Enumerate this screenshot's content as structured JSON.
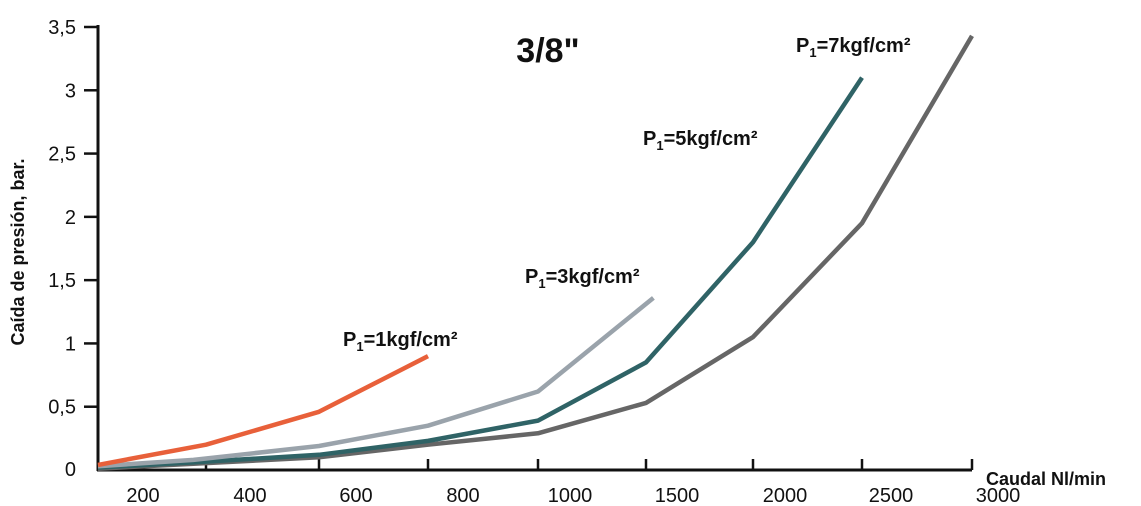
{
  "chart_data": {
    "type": "line",
    "title": "3/8\"",
    "xlabel": "Caudal Nl/min",
    "ylabel": "Caída de presión, bar.",
    "x_ticks": [
      "200",
      "400",
      "600",
      "800",
      "1000",
      "1500",
      "2000",
      "2500",
      "3000"
    ],
    "y_ticks": [
      "0",
      "0,5",
      "1",
      "1,5",
      "2",
      "2,5",
      "3",
      "3,5"
    ],
    "ylim": [
      0,
      3.5
    ],
    "grid": false,
    "colors": {
      "p1": "#e8603a",
      "p3": "#9aa3ab",
      "p5": "#2f6366",
      "p7": "#666666",
      "axis": "#111111"
    },
    "series": [
      {
        "name": "P1=1kgf/cm²",
        "label_main": "P",
        "label_sub": "1",
        "label_rest": "=1kgf/cm²",
        "color_key": "p1",
        "points": [
          {
            "x": 100,
            "y": 0.04
          },
          {
            "x": 320,
            "y": 0.2
          },
          {
            "x": 540,
            "y": 0.46
          },
          {
            "x": 760,
            "y": 0.9
          }
        ]
      },
      {
        "name": "P1=3kgf/cm²",
        "label_main": "P",
        "label_sub": "1",
        "label_rest": "=3kgf/cm²",
        "color_key": "p3",
        "points": [
          {
            "x": 100,
            "y": 0.03
          },
          {
            "x": 300,
            "y": 0.08
          },
          {
            "x": 540,
            "y": 0.19
          },
          {
            "x": 760,
            "y": 0.35
          },
          {
            "x": 1000,
            "y": 0.62
          },
          {
            "x": 1540,
            "y": 1.36
          }
        ]
      },
      {
        "name": "P1=5kgf/cm²",
        "label_main": "P",
        "label_sub": "1",
        "label_rest": "=5kgf/cm²",
        "color_key": "p5",
        "points": [
          {
            "x": 100,
            "y": 0.02
          },
          {
            "x": 300,
            "y": 0.06
          },
          {
            "x": 540,
            "y": 0.12
          },
          {
            "x": 760,
            "y": 0.23
          },
          {
            "x": 1000,
            "y": 0.39
          },
          {
            "x": 1500,
            "y": 0.85
          },
          {
            "x": 2080,
            "y": 1.8
          },
          {
            "x": 2640,
            "y": 3.1
          }
        ]
      },
      {
        "name": "P1=7kgf/cm²",
        "label_main": "P",
        "label_sub": "1",
        "label_rest": "=7kgf/cm²",
        "color_key": "p7",
        "points": [
          {
            "x": 100,
            "y": 0.01
          },
          {
            "x": 300,
            "y": 0.05
          },
          {
            "x": 540,
            "y": 0.1
          },
          {
            "x": 760,
            "y": 0.2
          },
          {
            "x": 1000,
            "y": 0.29
          },
          {
            "x": 1500,
            "y": 0.53
          },
          {
            "x": 2080,
            "y": 1.05
          },
          {
            "x": 2640,
            "y": 1.95
          },
          {
            "x": 3200,
            "y": 3.43
          }
        ]
      }
    ]
  }
}
